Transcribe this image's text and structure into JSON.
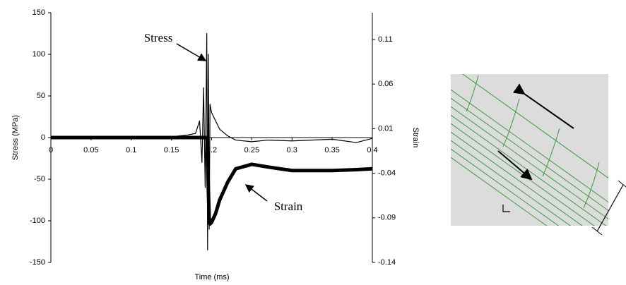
{
  "chart_data": {
    "type": "line",
    "x_label": "Time (ms)",
    "y_label": "Stress (MPa)",
    "y2_label": "Strain",
    "annotations": [
      "Stress",
      "Strain"
    ],
    "x": [
      0,
      0.05,
      0.1,
      0.15,
      0.17,
      0.18,
      0.185,
      0.188,
      0.19,
      0.192,
      0.194,
      0.195,
      0.196,
      0.197,
      0.198,
      0.2,
      0.205,
      0.21,
      0.22,
      0.23,
      0.25,
      0.27,
      0.3,
      0.35,
      0.38,
      0.4
    ],
    "series": [
      {
        "name": "Stress",
        "color": "#000000",
        "values": [
          0,
          0,
          0,
          1,
          3,
          5,
          20,
          -30,
          60,
          -60,
          125,
          -135,
          100,
          -110,
          40,
          30,
          20,
          10,
          2,
          -3,
          -5,
          -3,
          -4,
          -2,
          -6,
          -1
        ]
      },
      {
        "name": "Strain",
        "color": "#000000",
        "axis": "y2",
        "values": [
          0,
          0,
          0,
          0,
          0,
          0,
          0,
          0,
          0,
          0,
          0,
          -0.02,
          -0.06,
          -0.09,
          -0.097,
          -0.095,
          -0.085,
          -0.07,
          -0.05,
          -0.035,
          -0.03,
          -0.033,
          -0.037,
          -0.037,
          -0.036,
          -0.035
        ]
      }
    ],
    "xlim": [
      0,
      0.4
    ],
    "xticks": [
      0,
      0.05,
      0.1,
      0.15,
      0.2,
      0.25,
      0.3,
      0.35,
      0.4
    ],
    "ylim": [
      -150,
      150
    ],
    "yticks": [
      -150,
      -100,
      -50,
      0,
      50,
      100,
      150
    ],
    "y2lim": [
      -0.14,
      0.14
    ],
    "y2ticks": [
      -0.14,
      -0.09,
      -0.04,
      0.01,
      0.06,
      0.11
    ]
  }
}
